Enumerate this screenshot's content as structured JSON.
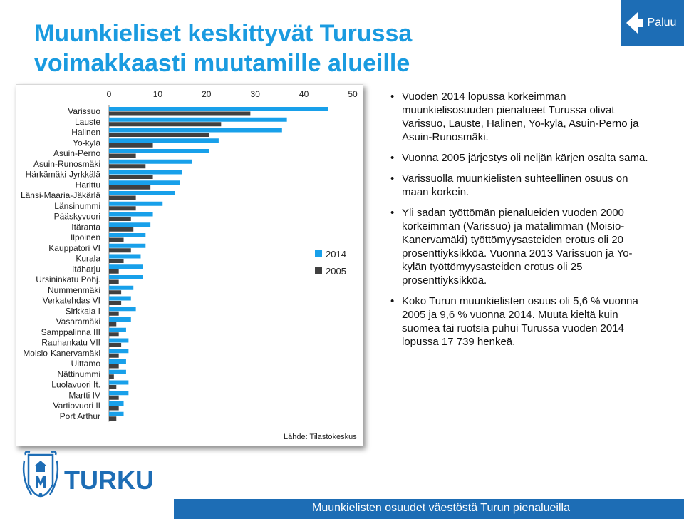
{
  "title_line1": "Muunkieliset keskittyvät Turussa",
  "title_line2": "voimakkaasti muutamille alueille",
  "back_button": "Paluu",
  "source": "Lähde: Tilastokeskus",
  "footer": "Muunkielisten osuudet väestöstä Turun pienalueilla",
  "logo_text": "TURKU",
  "bullets": [
    "Vuoden 2014 lopussa korkeimman muunkielisosuuden pienalueet Turussa olivat Varissuo, Lauste, Halinen, Yo-kylä, Asuin-Perno ja Asuin-Runosmäki.",
    "Vuonna 2005 järjestys oli neljän kärjen osalta sama.",
    "Varissuolla muunkielisten suhteellinen osuus on maan korkein.",
    "Yli sadan työttömän pienalueiden vuoden 2000 korkeimman (Varissuo) ja matalimman (Moisio-Kanervamäki) työttömyysasteiden erotus oli 20 prosenttiyksikköä. Vuonna 2013 Varissuon ja Yo-kylän työttömyysasteiden erotus oli 25 prosenttiyksikköä.",
    "Koko Turun muunkielisten osuus oli 5,6 % vuonna 2005 ja 9,6 % vuonna 2014. Muuta kieltä kuin suomea tai ruotsia puhui Turussa vuoden 2014 lopussa 17 739 henkeä."
  ],
  "colors": {
    "title": "#1a9be0",
    "series_2014": "#18a0ea",
    "series_2005": "#404040",
    "accent": "#1d6db5"
  },
  "chart_data": {
    "type": "bar",
    "orientation": "horizontal",
    "xlim": [
      0,
      50
    ],
    "xticks": [
      0,
      10,
      20,
      30,
      40,
      50
    ],
    "axis_position": "top",
    "grid": false,
    "legend": "right",
    "categories": [
      "Varissuo",
      "Lauste",
      "Halinen",
      "Yo-kylä",
      "Asuin-Perno",
      "Asuin-Runosmäki",
      "Härkämäki-Jyrkkälä",
      "Harittu",
      "Länsi-Maaria-Jäkärlä",
      "Länsinummi",
      "Pääskyvuori",
      "Itäranta",
      "Ilpoinen",
      "Kauppatori VI",
      "Kurala",
      "Itäharju",
      "Ursininkatu Pohj.",
      "Nummenmäki",
      "Verkatehdas VI",
      "Sirkkala I",
      "Vasaramäki",
      "Samppalinna III",
      "Rauhankatu VII",
      "Moisio-Kanervamäki",
      "Uittamo",
      "Nättinummi",
      "Luolavuori It.",
      "Martti IV",
      "Vartiovuori II",
      "Port Arthur"
    ],
    "series": [
      {
        "name": "2014",
        "values": [
          45.0,
          36.5,
          35.5,
          22.5,
          20.5,
          17.0,
          15.0,
          14.5,
          13.5,
          11.0,
          9.0,
          8.5,
          7.5,
          7.5,
          6.5,
          7.0,
          7.0,
          5.0,
          4.5,
          5.5,
          4.5,
          3.5,
          4.0,
          4.0,
          3.5,
          3.5,
          4.0,
          4.0,
          3.0,
          3.0
        ]
      },
      {
        "name": "2005",
        "values": [
          29.0,
          23.0,
          20.5,
          9.0,
          5.5,
          7.5,
          9.0,
          8.5,
          5.5,
          5.5,
          4.5,
          5.0,
          3.0,
          4.5,
          3.0,
          2.0,
          2.0,
          2.5,
          2.5,
          2.0,
          1.5,
          2.0,
          2.5,
          2.0,
          2.0,
          1.0,
          1.5,
          2.0,
          2.0,
          1.5
        ]
      }
    ]
  }
}
